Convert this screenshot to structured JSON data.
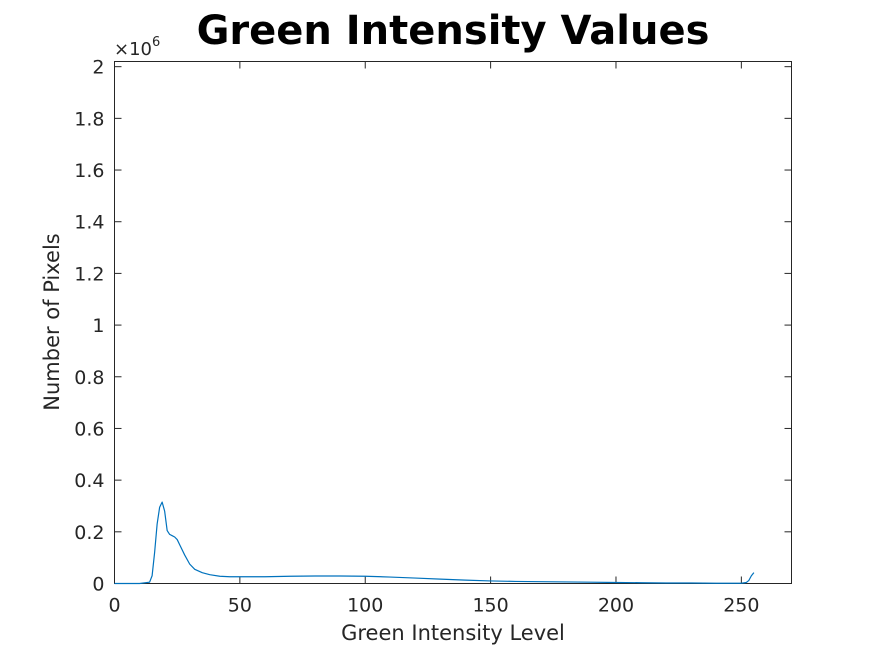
{
  "chart_data": {
    "type": "line",
    "title": "Green Intensity Values",
    "xlabel": "Green Intensity Level",
    "ylabel": "Number of Pixels",
    "y_exponent_label": "×10",
    "y_exponent_power": "6",
    "xlim": [
      0,
      270
    ],
    "ylim": [
      0,
      2.02
    ],
    "y_scale_note": "values in units of 10^6",
    "x_ticks": [
      0,
      50,
      100,
      150,
      200,
      250
    ],
    "x_tick_labels": [
      "0",
      "50",
      "100",
      "150",
      "200",
      "250"
    ],
    "y_ticks": [
      0,
      0.2,
      0.4,
      0.6,
      0.8,
      1,
      1.2,
      1.4,
      1.6,
      1.8,
      2
    ],
    "y_tick_labels": [
      "0",
      "0.2",
      "0.4",
      "0.6",
      "0.8",
      "1",
      "1.2",
      "1.4",
      "1.6",
      "1.8",
      "2"
    ],
    "grid": false,
    "line_color": "#0072BD",
    "series": [
      {
        "x": [
          0,
          10,
          14,
          15,
          16,
          17,
          18,
          19,
          20,
          21,
          22,
          23,
          24,
          25,
          26,
          28,
          30,
          32,
          35,
          38,
          42,
          46,
          50,
          60,
          70,
          80,
          90,
          100,
          110,
          120,
          130,
          140,
          150,
          160,
          170,
          180,
          190,
          200,
          210,
          220,
          230,
          240,
          250,
          252,
          253,
          254,
          255
        ],
        "y": [
          0,
          0,
          0.005,
          0.03,
          0.12,
          0.23,
          0.295,
          0.315,
          0.28,
          0.205,
          0.19,
          0.185,
          0.18,
          0.17,
          0.15,
          0.11,
          0.075,
          0.055,
          0.042,
          0.034,
          0.028,
          0.026,
          0.026,
          0.026,
          0.028,
          0.029,
          0.029,
          0.028,
          0.025,
          0.021,
          0.017,
          0.013,
          0.01,
          0.008,
          0.007,
          0.006,
          0.005,
          0.004,
          0.003,
          0.002,
          0.002,
          0.001,
          0.001,
          0.004,
          0.012,
          0.03,
          0.042
        ]
      }
    ]
  }
}
